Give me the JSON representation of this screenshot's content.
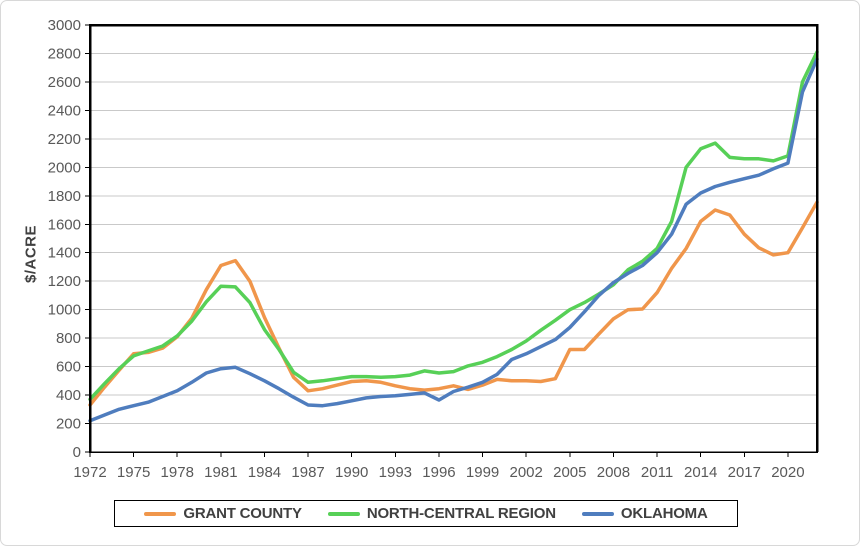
{
  "figure": {
    "background_color": "#FFFFFF",
    "border_color": "#D8D8D8"
  },
  "chart_data": {
    "type": "line",
    "title": "",
    "xlabel": "",
    "ylabel": "$/ACRE",
    "ylim": [
      0,
      3000
    ],
    "y_tick_step": 200,
    "grid": "horizontal",
    "legend_position": "bottom",
    "gridline_color": "#C9C9C9",
    "axis_color": "#000000",
    "tick_label_color": "#595959",
    "axis_title_color": "#404040",
    "y_ticks": [
      0,
      200,
      400,
      600,
      800,
      1000,
      1200,
      1400,
      1600,
      1800,
      2000,
      2200,
      2400,
      2600,
      2800,
      3000
    ],
    "x_ticks": [
      1972,
      1975,
      1978,
      1981,
      1984,
      1987,
      1990,
      1993,
      1996,
      1999,
      2002,
      2005,
      2008,
      2011,
      2014,
      2017,
      2020
    ],
    "x": [
      1972,
      1973,
      1974,
      1975,
      1976,
      1977,
      1978,
      1979,
      1980,
      1981,
      1982,
      1983,
      1984,
      1985,
      1986,
      1987,
      1988,
      1989,
      1990,
      1991,
      1992,
      1993,
      1994,
      1995,
      1996,
      1997,
      1998,
      1999,
      2000,
      2001,
      2002,
      2003,
      2004,
      2005,
      2006,
      2007,
      2008,
      2009,
      2010,
      2011,
      2012,
      2013,
      2014,
      2015,
      2016,
      2017,
      2018,
      2019,
      2020,
      2021,
      2022
    ],
    "series": [
      {
        "name": "GRANT COUNTY",
        "color": "#F0964B",
        "values": [
          330,
          455,
          575,
          690,
          700,
          730,
          810,
          940,
          1140,
          1310,
          1345,
          1200,
          945,
          730,
          525,
          430,
          445,
          470,
          495,
          500,
          490,
          465,
          445,
          435,
          445,
          465,
          440,
          470,
          510,
          500,
          500,
          495,
          515,
          720,
          720,
          830,
          935,
          1000,
          1005,
          1120,
          1290,
          1430,
          1620,
          1700,
          1665,
          1530,
          1435,
          1385,
          1400,
          1575,
          1755
        ]
      },
      {
        "name": "NORTH-CENTRAL REGION",
        "color": "#57D057",
        "values": [
          370,
          480,
          585,
          675,
          710,
          745,
          815,
          920,
          1055,
          1165,
          1160,
          1050,
          860,
          720,
          560,
          490,
          500,
          515,
          530,
          530,
          525,
          530,
          540,
          570,
          555,
          565,
          605,
          630,
          670,
          720,
          780,
          855,
          925,
          1000,
          1050,
          1110,
          1175,
          1280,
          1340,
          1430,
          1620,
          2000,
          2130,
          2170,
          2070,
          2060,
          2060,
          2045,
          2080,
          2600,
          2810
        ]
      },
      {
        "name": "OKLAHOMA",
        "color": "#4F7DBE",
        "values": [
          220,
          260,
          300,
          325,
          350,
          390,
          430,
          490,
          555,
          585,
          595,
          550,
          500,
          445,
          385,
          330,
          325,
          340,
          360,
          380,
          390,
          395,
          405,
          415,
          365,
          425,
          455,
          490,
          545,
          650,
          690,
          740,
          790,
          875,
          985,
          1100,
          1190,
          1255,
          1310,
          1400,
          1530,
          1740,
          1820,
          1865,
          1895,
          1920,
          1945,
          1990,
          2030,
          2530,
          2760
        ]
      }
    ],
    "legend": {
      "border_color": "#000000",
      "entries": [
        "GRANT COUNTY",
        "NORTH-CENTRAL REGION",
        "OKLAHOMA"
      ]
    }
  }
}
